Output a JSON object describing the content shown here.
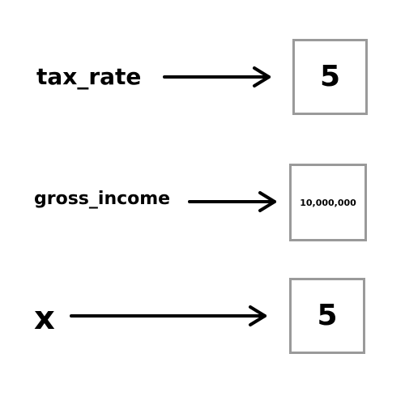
{
  "bindings": [
    {
      "name": "tax_rate",
      "value": "5"
    },
    {
      "name": "gross_income",
      "value": "10,000,000"
    },
    {
      "name": "x",
      "value": "5"
    }
  ],
  "colors": {
    "text": "#000000",
    "arrow": "#000000",
    "box_border": "#9a9a9a",
    "background": "#ffffff"
  }
}
